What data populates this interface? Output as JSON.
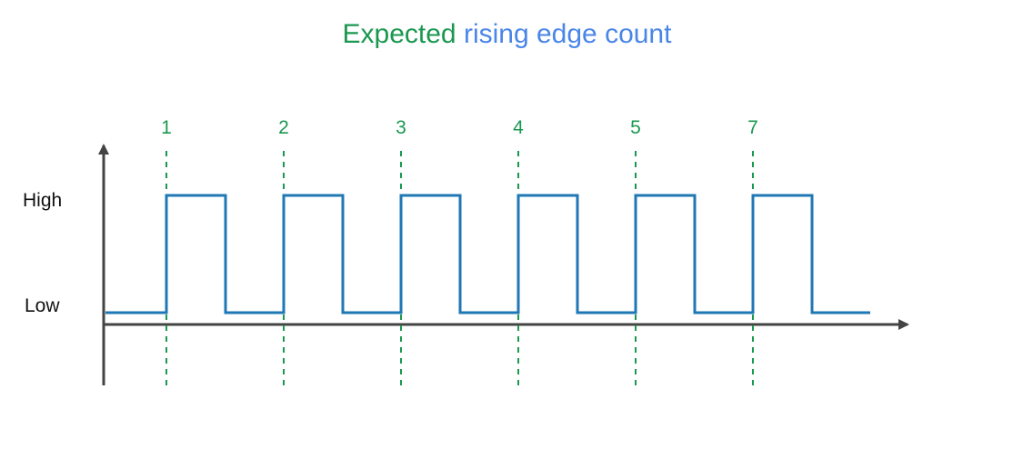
{
  "title": {
    "part1": "Expected",
    "part2": "rising edge count"
  },
  "y_levels": {
    "high": "High",
    "low": "Low"
  },
  "edge_labels": [
    "1",
    "2",
    "3",
    "4",
    "5",
    "7"
  ],
  "colors": {
    "title_green": "#1a9850",
    "title_blue": "#4a86e8",
    "signal": "#1f77b4",
    "edge_marker": "#1a9850",
    "axis": "#444444",
    "text": "#111111"
  }
}
